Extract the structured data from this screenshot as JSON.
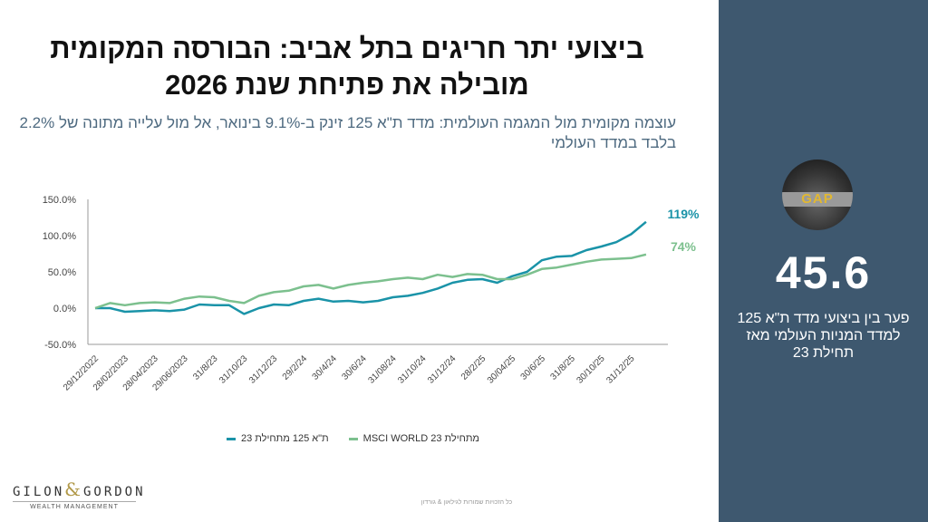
{
  "title": "ביצועי יתר חריגים בתל אביב: הבורסה המקומית מובילה את פתיחת שנת 2026",
  "subtitle": "עוצמה מקומית מול המגמה העולמית: מדד ת\"א 125 זינק ב-9.1% בינואר, אל מול עלייה מתונה של 2.2% בלבד במדד העולמי",
  "chart_data": {
    "type": "line",
    "ylim": [
      -50,
      150
    ],
    "yticks": [
      "150.0%",
      "100.0%",
      "50.0%",
      "0.0%",
      "-50.0%"
    ],
    "ytick_values": [
      150,
      100,
      50,
      0,
      -50
    ],
    "xtick_labels": [
      "29/12/2022",
      "28/02/2023",
      "28/04/2023",
      "29/06/2023",
      "31/8/23",
      "31/10/23",
      "31/12/23",
      "29/2/24",
      "30/4/24",
      "30/6/24",
      "31/08/24",
      "31/10/24",
      "31/12/24",
      "28/2/25",
      "30/04/25",
      "30/6/25",
      "31/8/25",
      "30/10/25",
      "31/12/25"
    ],
    "series": [
      {
        "name": "ת\"א 125 מתחילת 23",
        "color": "#1a93a8",
        "end_label": "119%",
        "values": [
          0,
          0,
          -5,
          -4,
          -3,
          -4,
          -2,
          5,
          4,
          4,
          -8,
          0,
          5,
          4,
          10,
          13,
          9,
          10,
          8,
          10,
          15,
          17,
          21,
          27,
          35,
          39,
          40,
          35,
          44,
          50,
          66,
          71,
          72,
          80,
          85,
          91,
          102,
          119
        ]
      },
      {
        "name": "MSCI WORLD 23 מתחילת",
        "color": "#7cc08e",
        "end_label": "74%",
        "values": [
          0,
          7,
          4,
          7,
          8,
          7,
          13,
          16,
          15,
          10,
          7,
          17,
          22,
          24,
          30,
          32,
          27,
          32,
          35,
          37,
          40,
          42,
          40,
          46,
          43,
          47,
          46,
          40,
          40,
          46,
          54,
          56,
          60,
          64,
          67,
          68,
          69,
          74
        ]
      }
    ]
  },
  "logo": {
    "left": "GILON",
    "amp": "&",
    "right": "GORDON",
    "sub": "WEALTH MANAGEMENT"
  },
  "footer": "כל הזכויות שמורות לגילאון & גורדון",
  "panel": {
    "image_text": "GAP",
    "value": "45.6",
    "description": "פער בין ביצועי מדד ת\"א 125 למדד המניות העולמי מאז תחילת 23"
  }
}
